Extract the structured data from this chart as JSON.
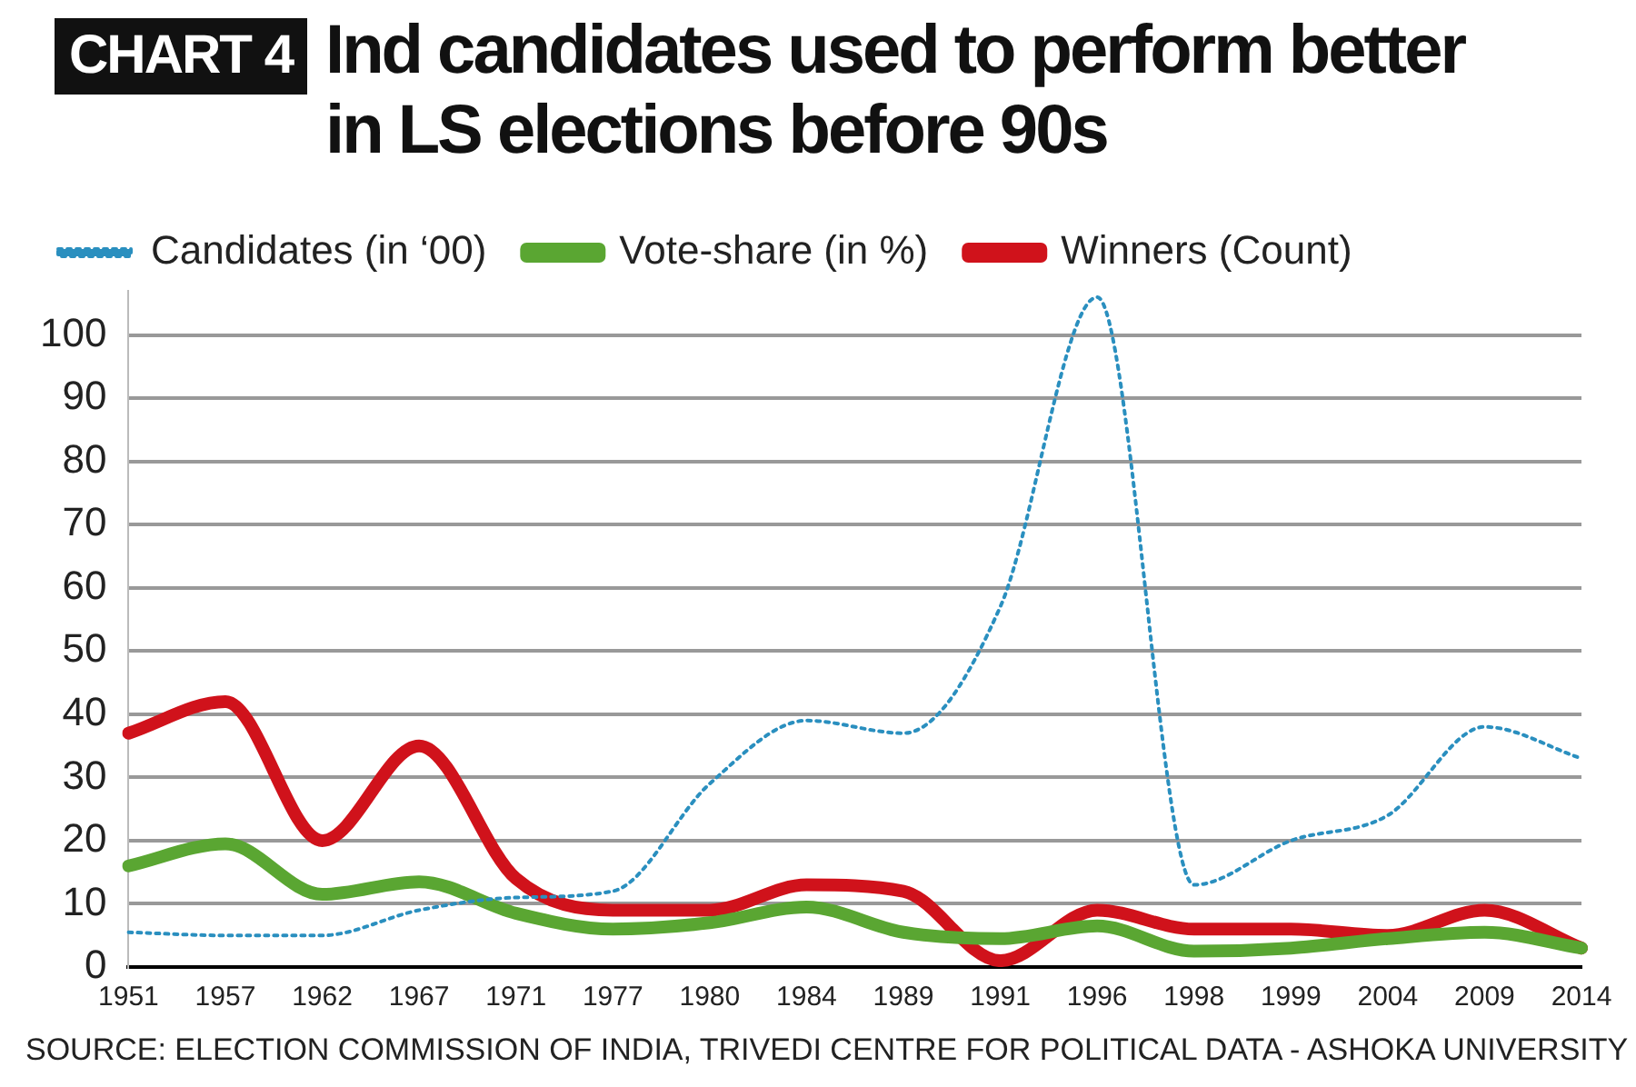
{
  "chart_data": {
    "type": "line",
    "title": "Ind candidates used to perform better in LS elections before 90s",
    "categories": [
      "1951",
      "1957",
      "1962",
      "1967",
      "1971",
      "1977",
      "1980",
      "1984",
      "1989",
      "1991",
      "1996",
      "1998",
      "1999",
      "2004",
      "2009",
      "2014"
    ],
    "series": [
      {
        "name": "Candidates (in ‘00)",
        "color": "#2a8fbf",
        "line_style": "dotted",
        "values": [
          5.5,
          5,
          5,
          9,
          11,
          12,
          29,
          39,
          37,
          57,
          106,
          13,
          20,
          24,
          38,
          33
        ]
      },
      {
        "name": "Vote-share (in %)",
        "color": "#5aa632",
        "line_style": "solid",
        "values": [
          16,
          19.5,
          11.5,
          13.5,
          8.5,
          6,
          7,
          9.5,
          5.5,
          4.5,
          6.5,
          2.5,
          3,
          4.5,
          5.5,
          3
        ]
      },
      {
        "name": "Winners (Count)",
        "color": "#d0121b",
        "line_style": "solid",
        "values": [
          37,
          42,
          20,
          35,
          14,
          9,
          9,
          13,
          12,
          1,
          9,
          6,
          6,
          5,
          9,
          3
        ]
      }
    ],
    "ylim": [
      0,
      107
    ],
    "yticks": [
      0,
      10,
      20,
      30,
      40,
      50,
      60,
      70,
      80,
      90,
      100
    ],
    "grid": "y",
    "legend": "top",
    "marker": "none",
    "annotations": [
      "CHART 4",
      "SOURCE: ELECTION COMMISSION OF INDIA, TRIVEDI CENTRE FOR POLITICAL DATA - ASHOKA UNIVERSITY"
    ]
  }
}
